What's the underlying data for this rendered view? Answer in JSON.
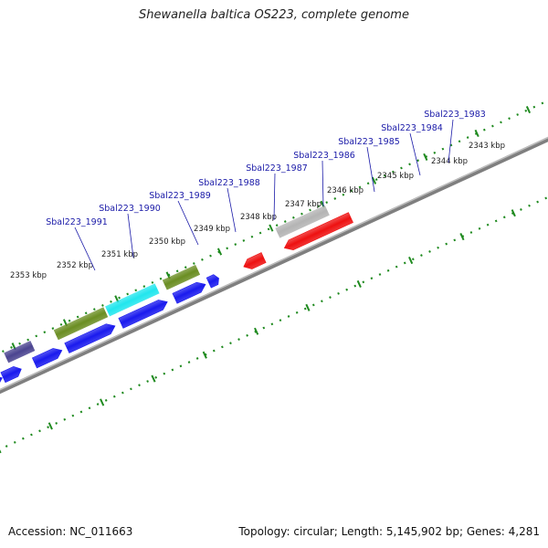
{
  "title": "Shewanella baltica OS223, complete genome",
  "footer": {
    "accession": "Accession: NC_011663",
    "summary": "Topology: circular; Length: 5,145,902 bp; Genes: 4,281"
  },
  "colors": {
    "forward_cds": "#1a1aee",
    "reverse_cds": "#ee1111",
    "backbone": "#7f7f7f",
    "tick": "#1f8a1f",
    "locus_label": "#1a1aa8",
    "cog_purple": "#4b4490",
    "cog_steelblue": "#4f86b6",
    "cog_olive": "#6b8e23",
    "cog_cyan": "#22e6ee",
    "cog_gray": "#b4b4b4"
  },
  "scale": {
    "unit": "kbp",
    "ticks": [
      {
        "label": "2343 kbp",
        "kbp": 2343
      },
      {
        "label": "2344 kbp",
        "kbp": 2344
      },
      {
        "label": "2345 kbp",
        "kbp": 2345
      },
      {
        "label": "2346 kbp",
        "kbp": 2346
      },
      {
        "label": "2347 kbp",
        "kbp": 2347
      },
      {
        "label": "2348 kbp",
        "kbp": 2348
      },
      {
        "label": "2349 kbp",
        "kbp": 2349
      },
      {
        "label": "2350 kbp",
        "kbp": 2350
      },
      {
        "label": "2351 kbp",
        "kbp": 2351
      },
      {
        "label": "2352 kbp",
        "kbp": 2352
      },
      {
        "label": "2353 kbp",
        "kbp": 2353
      }
    ]
  },
  "genes": [
    {
      "label": "Sbal223_1983"
    },
    {
      "label": "Sbal223_1984"
    },
    {
      "label": "Sbal223_1985"
    },
    {
      "label": "Sbal223_1986"
    },
    {
      "label": "Sbal223_1987"
    },
    {
      "label": "Sbal223_1988"
    },
    {
      "label": "Sbal223_1989"
    },
    {
      "label": "Sbal223_1990"
    },
    {
      "label": "Sbal223_1991"
    }
  ]
}
